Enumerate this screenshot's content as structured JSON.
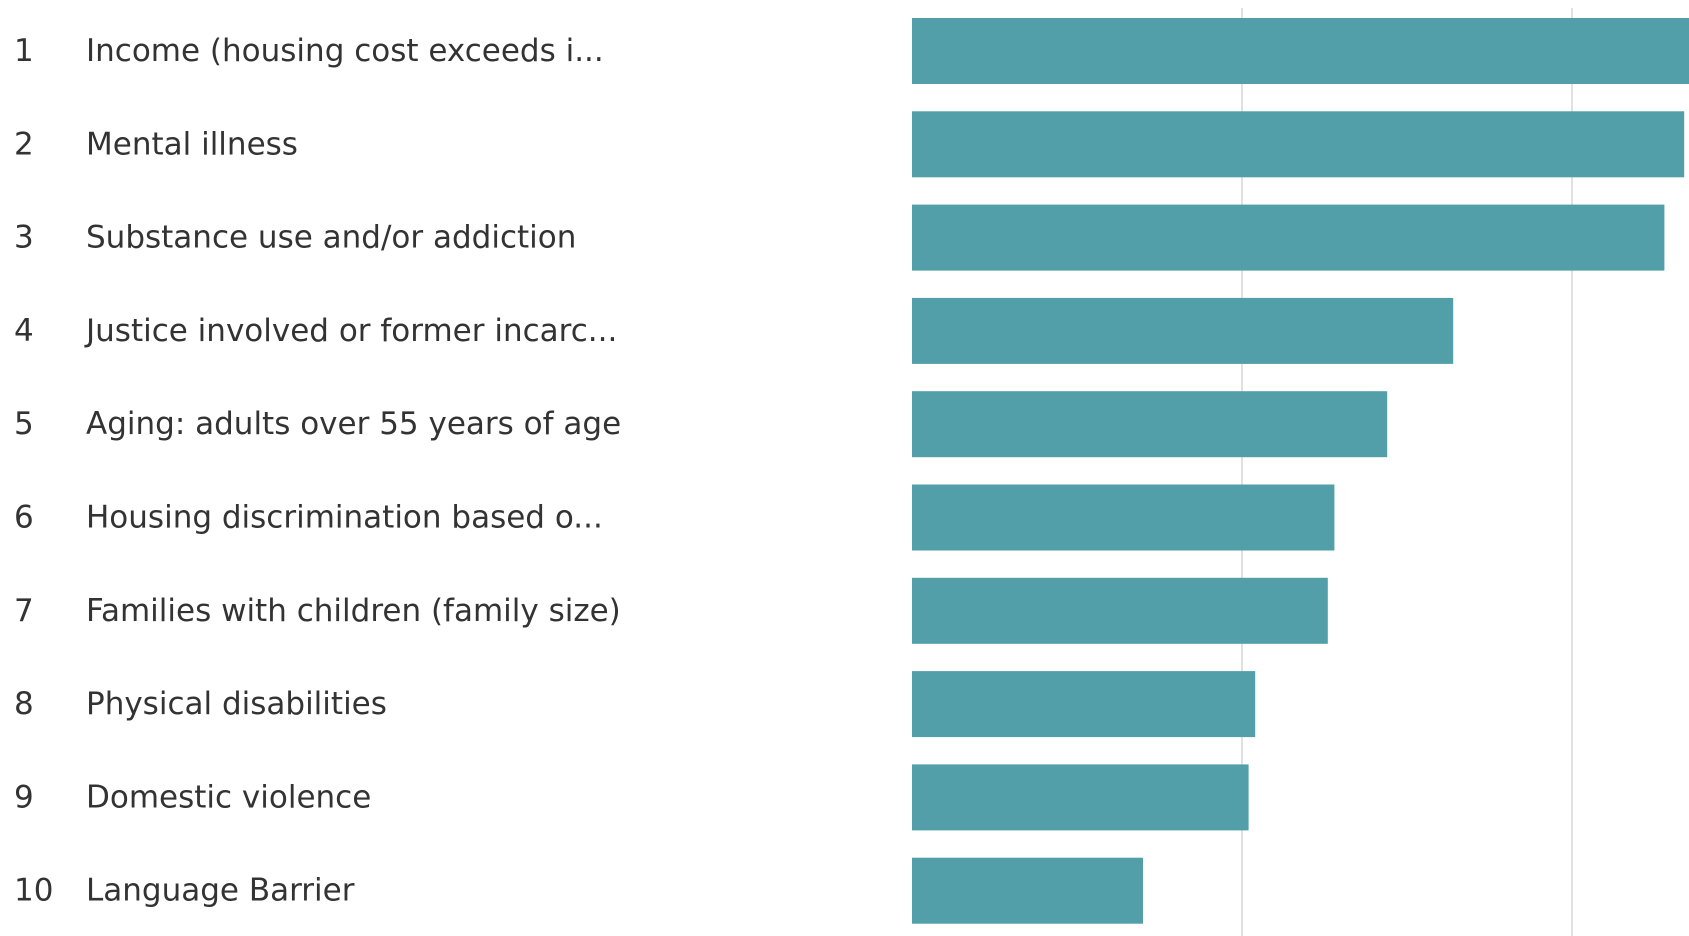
{
  "accent_color": "#529ea9",
  "chart_data": {
    "type": "bar",
    "orientation": "horizontal",
    "title": "",
    "xlabel": "",
    "ylabel": "",
    "ranks": [
      "1",
      "2",
      "3",
      "4",
      "5",
      "6",
      "7",
      "8",
      "9",
      "10"
    ],
    "categories": [
      "Income (housing cost exceeds i...",
      "Mental illness",
      "Substance use and/or addiction",
      "Justice involved or former incarc...",
      "Aging: adults over 55 years of age",
      "Housing discrimination based o...",
      "Families with children (family size)",
      "Physical disabilities",
      "Domestic violence",
      "Language Barrier"
    ],
    "values": [
      2.45,
      2.34,
      2.28,
      1.64,
      1.44,
      1.28,
      1.26,
      1.04,
      1.02,
      0.7
    ],
    "xlim": [
      0,
      2.4
    ],
    "gridlines_at": [
      1,
      2
    ],
    "grid": true,
    "legend": "none",
    "bar_color": "#529ea9"
  }
}
